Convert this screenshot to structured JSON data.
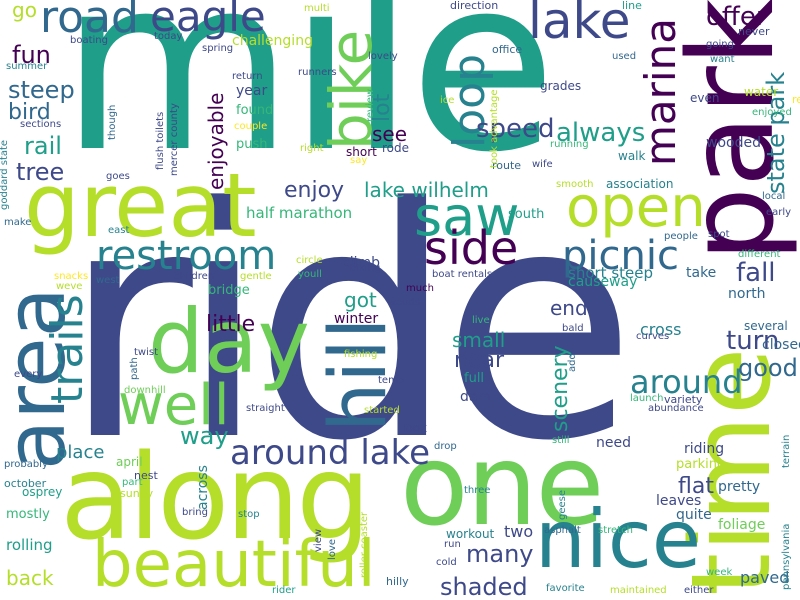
{
  "word_cloud": {
    "palette": {
      "dark_purple": "#440154",
      "indigo": "#3e4989",
      "blue": "#31688e",
      "teal": "#26828e",
      "green_teal": "#1f9e89",
      "green": "#35b779",
      "light_green": "#6ece58",
      "lime": "#b5de2b",
      "yellow": "#fde725"
    },
    "words": [
      {
        "text": "ride",
        "color": "#3e4989"
      },
      {
        "text": "mile",
        "color": "#1f9e89"
      },
      {
        "text": "along",
        "color": "#b5de2b"
      },
      {
        "text": "one",
        "color": "#6ece58"
      },
      {
        "text": "park",
        "color": "#440154"
      },
      {
        "text": "time",
        "color": "#b5de2b"
      },
      {
        "text": "great",
        "color": "#b5de2b"
      },
      {
        "text": "nice",
        "color": "#26828e"
      },
      {
        "text": "area",
        "color": "#31688e"
      },
      {
        "text": "day",
        "color": "#6ece58"
      },
      {
        "text": "hill",
        "color": "#31688e"
      },
      {
        "text": "beautiful",
        "color": "#b5de2b"
      },
      {
        "text": "well",
        "color": "#6ece58"
      },
      {
        "text": "open",
        "color": "#b5de2b"
      },
      {
        "text": "road",
        "color": "#31688e"
      },
      {
        "text": "eagle",
        "color": "#3e4989"
      },
      {
        "text": "lake",
        "color": "#3e4989"
      },
      {
        "text": "bike",
        "color": "#6ece58"
      },
      {
        "text": "saw",
        "color": "#1f9e89"
      },
      {
        "text": "marina",
        "color": "#440154"
      },
      {
        "text": "restroom",
        "color": "#26828e"
      },
      {
        "text": "side",
        "color": "#440154"
      },
      {
        "text": "picnic",
        "color": "#31688e"
      },
      {
        "text": "loop",
        "color": "#26828e"
      },
      {
        "text": "trails",
        "color": "#26828e"
      },
      {
        "text": "around lake",
        "color": "#3e4989"
      },
      {
        "text": "around",
        "color": "#26828e"
      },
      {
        "text": "state park",
        "color": "#26828e"
      },
      {
        "text": "offer",
        "color": "#440154"
      },
      {
        "text": "speed",
        "color": "#3e4989"
      },
      {
        "text": "always",
        "color": "#1f9e89"
      },
      {
        "text": "lake wilhelm",
        "color": "#1f9e89"
      },
      {
        "text": "enjoy",
        "color": "#3e4989"
      },
      {
        "text": "fall",
        "color": "#3e4989"
      },
      {
        "text": "turn",
        "color": "#3e4989"
      },
      {
        "text": "good",
        "color": "#31688e"
      },
      {
        "text": "fun",
        "color": "#440154"
      },
      {
        "text": "steep",
        "color": "#31688e"
      },
      {
        "text": "bird",
        "color": "#31688e"
      },
      {
        "text": "rail",
        "color": "#1f9e89"
      },
      {
        "text": "tree",
        "color": "#3e4989"
      },
      {
        "text": "go",
        "color": "#b5de2b"
      },
      {
        "text": "lot",
        "color": "#26828e"
      },
      {
        "text": "enjoyable",
        "color": "#440154"
      },
      {
        "text": "see",
        "color": "#440154"
      },
      {
        "text": "way",
        "color": "#1f9e89"
      },
      {
        "text": "little",
        "color": "#440154"
      },
      {
        "text": "got",
        "color": "#1f9e89"
      },
      {
        "text": "many",
        "color": "#3e4989"
      },
      {
        "text": "shaded",
        "color": "#3e4989"
      },
      {
        "text": "small",
        "color": "#1f9e89"
      },
      {
        "text": "near",
        "color": "#3e4989"
      },
      {
        "text": "scenery",
        "color": "#1f9e89"
      },
      {
        "text": "end",
        "color": "#3e4989"
      },
      {
        "text": "back",
        "color": "#b5de2b"
      },
      {
        "text": "flat",
        "color": "#3e4989"
      },
      {
        "text": "half marathon",
        "color": "#35b779"
      },
      {
        "text": "short steep",
        "color": "#26828e"
      },
      {
        "text": "cross",
        "color": "#26828e"
      },
      {
        "text": "place",
        "color": "#26828e"
      },
      {
        "text": "two",
        "color": "#3e4989"
      },
      {
        "text": "challenging",
        "color": "#b5de2b"
      },
      {
        "text": "climb",
        "color": "#3e4989"
      },
      {
        "text": "winter",
        "color": "#440154"
      },
      {
        "text": "bridge",
        "color": "#35b779"
      },
      {
        "text": "paved",
        "color": "#31688e"
      },
      {
        "text": "causeway",
        "color": "#1f9e89"
      },
      {
        "text": "take",
        "color": "#31688e"
      },
      {
        "text": "north",
        "color": "#31688e"
      },
      {
        "text": "closed",
        "color": "#31688e"
      },
      {
        "text": "several",
        "color": "#31688e"
      },
      {
        "text": "dam",
        "color": "#3e4989"
      },
      {
        "text": "full",
        "color": "#1f9e89"
      },
      {
        "text": "rolling",
        "color": "#1f9e89"
      },
      {
        "text": "mostly",
        "color": "#35b779"
      },
      {
        "text": "across",
        "color": "#26828e"
      },
      {
        "text": "need",
        "color": "#3e4989"
      },
      {
        "text": "leaves",
        "color": "#3e4989"
      },
      {
        "text": "quite",
        "color": "#31688e"
      },
      {
        "text": "foliage",
        "color": "#6ece58"
      },
      {
        "text": "pretty",
        "color": "#31688e"
      },
      {
        "text": "riding",
        "color": "#3e4989"
      },
      {
        "text": "parking",
        "color": "#b5de2b"
      },
      {
        "text": "workout",
        "color": "#26828e"
      },
      {
        "text": "look",
        "color": "#3e4989"
      },
      {
        "text": "year",
        "color": "#3e4989"
      },
      {
        "text": "found",
        "color": "#35b779"
      },
      {
        "text": "push",
        "color": "#35b779"
      },
      {
        "text": "short",
        "color": "#440154"
      },
      {
        "text": "rode",
        "color": "#3e4989"
      },
      {
        "text": "south",
        "color": "#1f9e89"
      },
      {
        "text": "wooded",
        "color": "#3e4989"
      },
      {
        "text": "walk",
        "color": "#26828e"
      },
      {
        "text": "association",
        "color": "#26828e"
      },
      {
        "text": "even",
        "color": "#3e4989"
      },
      {
        "text": "water",
        "color": "#b5de2b"
      },
      {
        "text": "grades",
        "color": "#3e4989"
      },
      {
        "text": "running",
        "color": "#35b779"
      },
      {
        "text": "route",
        "color": "#31688e"
      },
      {
        "text": "office",
        "color": "#31688e"
      },
      {
        "text": "direction",
        "color": "#3e4989"
      },
      {
        "text": "line",
        "color": "#1f9e89"
      },
      {
        "text": "never",
        "color": "#3e4989"
      },
      {
        "text": "want",
        "color": "#26828e"
      },
      {
        "text": "going",
        "color": "#3e4989"
      },
      {
        "text": "used",
        "color": "#31688e"
      },
      {
        "text": "rest",
        "color": "#fde725"
      },
      {
        "text": "enjoyed",
        "color": "#35b779"
      },
      {
        "text": "terrain",
        "color": "#26828e"
      },
      {
        "text": "local",
        "color": "#31688e"
      },
      {
        "text": "early",
        "color": "#3e4989"
      },
      {
        "text": "different",
        "color": "#35b779"
      },
      {
        "text": "spot",
        "color": "#3e4989"
      },
      {
        "text": "people",
        "color": "#31688e"
      },
      {
        "text": "bald",
        "color": "#3e4989"
      },
      {
        "text": "curves",
        "color": "#3e4989"
      },
      {
        "text": "variety",
        "color": "#3e4989"
      },
      {
        "text": "launch",
        "color": "#35b779"
      },
      {
        "text": "abundance",
        "color": "#3e4989"
      },
      {
        "text": "week",
        "color": "#35b779"
      },
      {
        "text": "either",
        "color": "#3e4989"
      },
      {
        "text": "maintained",
        "color": "#b5de2b"
      },
      {
        "text": "favorite",
        "color": "#26828e"
      },
      {
        "text": "asphalt",
        "color": "#31688e"
      },
      {
        "text": "stretch",
        "color": "#35b779"
      },
      {
        "text": "geese",
        "color": "#26828e"
      },
      {
        "text": "three",
        "color": "#26828e"
      },
      {
        "text": "cold",
        "color": "#3e4989"
      },
      {
        "text": "run",
        "color": "#3e4989"
      },
      {
        "text": "hilly",
        "color": "#31688e"
      },
      {
        "text": "love",
        "color": "#31688e"
      },
      {
        "text": "view",
        "color": "#3e4989"
      },
      {
        "text": "roller coaster",
        "color": "#b5de2b"
      },
      {
        "text": "rider",
        "color": "#1f9e89"
      },
      {
        "text": "stop",
        "color": "#26828e"
      },
      {
        "text": "bring",
        "color": "#3e4989"
      },
      {
        "text": "part",
        "color": "#35b779"
      },
      {
        "text": "sunny",
        "color": "#b5de2b"
      },
      {
        "text": "nest",
        "color": "#3e4989"
      },
      {
        "text": "april",
        "color": "#6ece58"
      },
      {
        "text": "osprey",
        "color": "#1f9e89"
      },
      {
        "text": "october",
        "color": "#26828e"
      },
      {
        "text": "probably",
        "color": "#31688e"
      },
      {
        "text": "every",
        "color": "#3e4989"
      },
      {
        "text": "path",
        "color": "#31688e"
      },
      {
        "text": "downhill",
        "color": "#6ece58"
      },
      {
        "text": "straight",
        "color": "#3e4989"
      },
      {
        "text": "twist",
        "color": "#3e4989"
      },
      {
        "text": "started",
        "color": "#b5de2b"
      },
      {
        "text": "temp",
        "color": "#3e4989"
      },
      {
        "text": "add",
        "color": "#31688e"
      },
      {
        "text": "live",
        "color": "#35b779"
      },
      {
        "text": "drop",
        "color": "#31688e"
      },
      {
        "text": "still",
        "color": "#35b779"
      },
      {
        "text": "fishing",
        "color": "#b5de2b"
      },
      {
        "text": "much",
        "color": "#440154"
      },
      {
        "text": "woods",
        "color": "#3e4989"
      },
      {
        "text": "boat rentals",
        "color": "#3e4989"
      },
      {
        "text": "biking",
        "color": "#3e4989"
      },
      {
        "text": "circle",
        "color": "#b5de2b"
      },
      {
        "text": "youll",
        "color": "#35b779"
      },
      {
        "text": "gentle",
        "color": "#b5de2b"
      },
      {
        "text": "children",
        "color": "#3e4989"
      },
      {
        "text": "snacks",
        "color": "#fde725"
      },
      {
        "text": "weve",
        "color": "#b5de2b"
      },
      {
        "text": "west",
        "color": "#31688e"
      },
      {
        "text": "east",
        "color": "#26828e"
      },
      {
        "text": "make",
        "color": "#31688e"
      },
      {
        "text": "goes",
        "color": "#3e4989"
      },
      {
        "text": "goddard state",
        "color": "#26828e"
      },
      {
        "text": "sections",
        "color": "#3e4989"
      },
      {
        "text": "summer",
        "color": "#26828e"
      },
      {
        "text": "boating",
        "color": "#3e4989"
      },
      {
        "text": "today",
        "color": "#3e4989"
      },
      {
        "text": "spring",
        "color": "#3e4989"
      },
      {
        "text": "multi",
        "color": "#b5de2b"
      },
      {
        "text": "runners",
        "color": "#3e4989"
      },
      {
        "text": "lovely",
        "color": "#3e4989"
      },
      {
        "text": "review",
        "color": "#35b779"
      },
      {
        "text": "return",
        "color": "#3e4989"
      },
      {
        "text": "couple",
        "color": "#fde725"
      },
      {
        "text": "right",
        "color": "#b5de2b"
      },
      {
        "text": "say",
        "color": "#fde725"
      },
      {
        "text": "ice",
        "color": "#b5de2b"
      },
      {
        "text": "took advantage",
        "color": "#b5de2b"
      },
      {
        "text": "wife",
        "color": "#3e4989"
      },
      {
        "text": "smooth",
        "color": "#b5de2b"
      },
      {
        "text": "though",
        "color": "#31688e"
      },
      {
        "text": "flush toilets",
        "color": "#3e4989"
      },
      {
        "text": "mercer county",
        "color": "#3e4989"
      },
      {
        "text": "t",
        "color": "#b5de2b"
      },
      {
        "text": "pennsylvania",
        "color": "#26828e"
      }
    ]
  }
}
